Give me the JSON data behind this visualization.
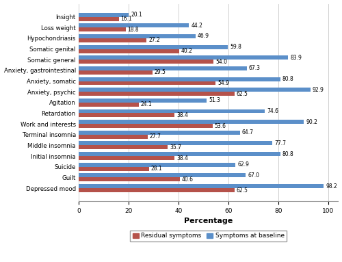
{
  "categories": [
    "Insight",
    "Loss weight",
    "Hypochondriasis",
    "Somatic genital",
    "Somatic general",
    "Anxiety, gastrointestinal",
    "Anxiety, somatic",
    "Anxiety, psychic",
    "Agitation",
    "Retardation",
    "Work and interests",
    "Terminal insomnia",
    "Middle insomnia",
    "Initial insomnia",
    "Suicide",
    "Guilt",
    "Depressed mood"
  ],
  "residual": [
    16.1,
    18.8,
    27.2,
    40.2,
    54.0,
    29.5,
    54.9,
    62.5,
    24.1,
    38.4,
    53.6,
    27.7,
    35.7,
    38.4,
    28.1,
    40.6,
    62.5
  ],
  "baseline": [
    20.1,
    44.2,
    46.9,
    59.8,
    83.9,
    67.3,
    80.8,
    92.9,
    51.3,
    74.6,
    90.2,
    64.7,
    77.7,
    80.8,
    62.9,
    67.0,
    98.2
  ],
  "residual_color": "#b5524a",
  "baseline_color": "#5b8fc9",
  "xlabel": "Percentage",
  "xlim": [
    0,
    104
  ],
  "legend_labels": [
    "Residual symptoms",
    "Symptoms at baseline"
  ],
  "bar_height": 0.38,
  "background_color": "#ffffff",
  "value_fontsize": 5.5,
  "label_fontsize": 6.2,
  "tick_fontsize": 6.5
}
